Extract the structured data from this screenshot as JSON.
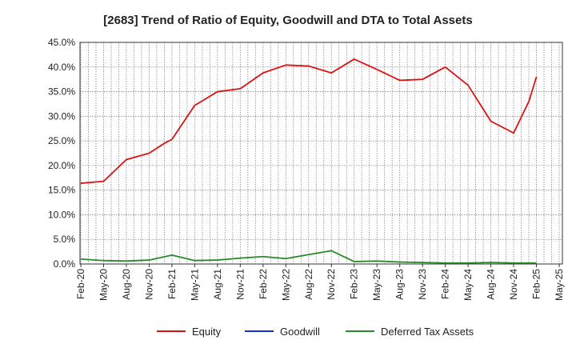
{
  "chart_data": {
    "type": "line",
    "title": "[2683]  Trend of Ratio of Equity, Goodwill and DTA to Total Assets",
    "xlabel": "",
    "ylabel": "",
    "ylim": [
      0,
      45
    ],
    "y_ticks": [
      "0.0%",
      "5.0%",
      "10.0%",
      "15.0%",
      "20.0%",
      "25.0%",
      "30.0%",
      "35.0%",
      "40.0%",
      "45.0%"
    ],
    "x_ticks": [
      "Feb-20",
      "May-20",
      "Aug-20",
      "Nov-20",
      "Feb-21",
      "May-21",
      "Aug-21",
      "Nov-21",
      "Feb-22",
      "May-22",
      "Aug-22",
      "Nov-22",
      "Feb-23",
      "May-23",
      "Aug-23",
      "Nov-23",
      "Feb-24",
      "May-24",
      "Aug-24",
      "Nov-24",
      "Feb-25",
      "May-25"
    ],
    "grid": true,
    "legend_position": "bottom",
    "series": [
      {
        "name": "Equity",
        "color": "#dd1111",
        "points": [
          {
            "x": "Feb-20",
            "y": 16.4
          },
          {
            "x": "May-20",
            "y": 16.8
          },
          {
            "x": "Aug-20",
            "y": 21.2
          },
          {
            "x": "Nov-20",
            "y": 22.5
          },
          {
            "x": "Jan-21",
            "y": 24.5
          },
          {
            "x": "Feb-21",
            "y": 25.3
          },
          {
            "x": "May-21",
            "y": 32.2
          },
          {
            "x": "Aug-21",
            "y": 35.0
          },
          {
            "x": "Nov-21",
            "y": 35.6
          },
          {
            "x": "Feb-22",
            "y": 38.8
          },
          {
            "x": "May-22",
            "y": 40.4
          },
          {
            "x": "Aug-22",
            "y": 40.2
          },
          {
            "x": "Nov-22",
            "y": 38.8
          },
          {
            "x": "Feb-23",
            "y": 41.6
          },
          {
            "x": "May-23",
            "y": 39.5
          },
          {
            "x": "Aug-23",
            "y": 37.3
          },
          {
            "x": "Nov-23",
            "y": 37.5
          },
          {
            "x": "Feb-24",
            "y": 40.0
          },
          {
            "x": "May-24",
            "y": 36.3
          },
          {
            "x": "Aug-24",
            "y": 29.0
          },
          {
            "x": "Nov-24",
            "y": 26.6
          },
          {
            "x": "Jan-25",
            "y": 33.0
          },
          {
            "x": "Feb-25",
            "y": 38.0
          }
        ]
      },
      {
        "name": "Goodwill",
        "color": "#1133cc",
        "points": []
      },
      {
        "name": "Deferred Tax Assets",
        "color": "#2a8a2a",
        "points": [
          {
            "x": "Feb-20",
            "y": 1.0
          },
          {
            "x": "May-20",
            "y": 0.7
          },
          {
            "x": "Aug-20",
            "y": 0.6
          },
          {
            "x": "Nov-20",
            "y": 0.8
          },
          {
            "x": "Feb-21",
            "y": 1.8
          },
          {
            "x": "May-21",
            "y": 0.7
          },
          {
            "x": "Aug-21",
            "y": 0.8
          },
          {
            "x": "Nov-21",
            "y": 1.2
          },
          {
            "x": "Feb-22",
            "y": 1.5
          },
          {
            "x": "May-22",
            "y": 1.1
          },
          {
            "x": "Aug-22",
            "y": 1.9
          },
          {
            "x": "Nov-22",
            "y": 2.7
          },
          {
            "x": "Feb-23",
            "y": 0.5
          },
          {
            "x": "May-23",
            "y": 0.6
          },
          {
            "x": "Aug-23",
            "y": 0.4
          },
          {
            "x": "Nov-23",
            "y": 0.3
          },
          {
            "x": "Feb-24",
            "y": 0.2
          },
          {
            "x": "May-24",
            "y": 0.2
          },
          {
            "x": "Aug-24",
            "y": 0.3
          },
          {
            "x": "Nov-24",
            "y": 0.2
          },
          {
            "x": "Feb-25",
            "y": 0.2
          }
        ]
      }
    ]
  }
}
